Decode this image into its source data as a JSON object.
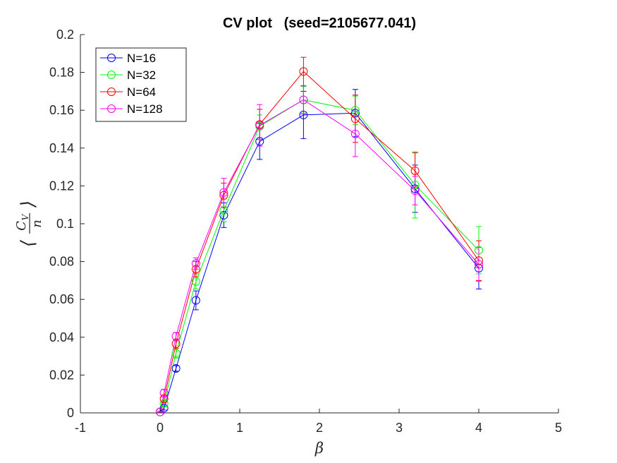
{
  "chart_data": {
    "type": "line",
    "title": "CV plot   (seed=2105677.041)",
    "xlabel": "β",
    "ylabel": "⟨C_V / n⟩",
    "ylabel_parts": {
      "numerator": "C",
      "subscript": "V",
      "denominator": "n",
      "left": "⟨",
      "right": "⟩"
    },
    "xlim": [
      -1,
      5
    ],
    "ylim": [
      0,
      0.2
    ],
    "xticks": [
      "-1",
      "0",
      "1",
      "2",
      "3",
      "4",
      "5"
    ],
    "yticks": [
      "0",
      "0.02",
      "0.04",
      "0.06",
      "0.08",
      "0.1",
      "0.12",
      "0.14",
      "0.16",
      "0.18",
      "0.2"
    ],
    "legend_placement": "top-left",
    "grid": false,
    "x": [
      0,
      0.05,
      0.2,
      0.45,
      0.8,
      1.25,
      1.8,
      2.45,
      3.2,
      4
    ],
    "series": [
      {
        "name": "N=16",
        "color": "#0000ff",
        "values": [
          0.0005,
          0.0025,
          0.0235,
          0.0595,
          0.1045,
          0.1435,
          0.1575,
          0.1585,
          0.1185,
          0.0765
        ],
        "errors": [
          0.0003,
          0.001,
          0.0015,
          0.005,
          0.0065,
          0.0095,
          0.0125,
          0.0125,
          0.0125,
          0.011
        ]
      },
      {
        "name": "N=32",
        "color": "#00ff00",
        "values": [
          0.0005,
          0.005,
          0.0315,
          0.0695,
          0.107,
          0.1515,
          0.1655,
          0.16,
          0.1205,
          0.086
        ],
        "errors": [
          0.0003,
          0.0015,
          0.0025,
          0.004,
          0.006,
          0.006,
          0.007,
          0.0075,
          0.0175,
          0.0125
        ]
      },
      {
        "name": "N=64",
        "color": "#ff0000",
        "values": [
          0.0005,
          0.0075,
          0.0365,
          0.076,
          0.115,
          0.1525,
          0.1805,
          0.1555,
          0.128,
          0.0805
        ],
        "errors": [
          0.0003,
          0.002,
          0.0025,
          0.004,
          0.0065,
          0.008,
          0.0075,
          0.0125,
          0.0095,
          0.0105
        ]
      },
      {
        "name": "N=128",
        "color": "#ff00ff",
        "values": [
          0.0005,
          0.0105,
          0.0405,
          0.079,
          0.1165,
          0.152,
          0.1655,
          0.1475,
          0.1175,
          0.0785
        ],
        "errors": [
          0.0003,
          0.002,
          0.002,
          0.003,
          0.0075,
          0.011,
          0.0075,
          0.012,
          0.0075,
          0.009
        ]
      }
    ]
  }
}
